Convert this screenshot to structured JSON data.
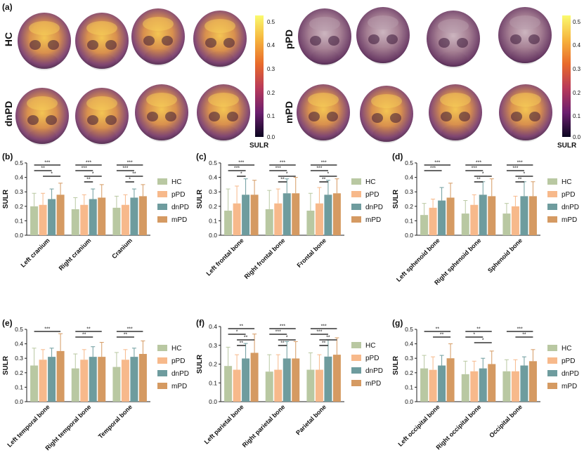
{
  "panel_a": {
    "label": "(a)",
    "groups": [
      {
        "name": "HC"
      },
      {
        "name": "pPD"
      },
      {
        "name": "dnPD"
      },
      {
        "name": "mPD"
      }
    ],
    "colorbar": {
      "label": "SULR",
      "ticks": [
        "0.5",
        "0.4",
        "0.3",
        "0.2",
        "0.1",
        "0.0"
      ],
      "colors": [
        "#fafa6e",
        "#f6b33d",
        "#e86a2b",
        "#b83a5a",
        "#6b1f6e",
        "#0b0620"
      ]
    }
  },
  "legend": [
    "HC",
    "pPD",
    "dnPD",
    "mPD"
  ],
  "colors": {
    "HC": "#b9c8a2",
    "pPD": "#f7b98b",
    "dnPD": "#6e9c9e",
    "mPD": "#d59a62",
    "sig": "#333333",
    "axis": "#222222"
  },
  "chart_data": [
    {
      "panel": "(b)",
      "type": "bar",
      "ylabel": "SULR",
      "ylim": [
        0,
        0.5
      ],
      "yticks": [
        "0.0",
        "0.1",
        "0.2",
        "0.3",
        "0.4",
        "0.5"
      ],
      "categories": [
        "Left cranium",
        "Right cranium",
        "Cranium"
      ],
      "series": [
        {
          "name": "HC",
          "values": [
            0.2,
            0.18,
            0.19
          ],
          "err": [
            0.09,
            0.08,
            0.08
          ]
        },
        {
          "name": "pPD",
          "values": [
            0.21,
            0.21,
            0.21
          ],
          "err": [
            0.08,
            0.07,
            0.07
          ]
        },
        {
          "name": "dnPD",
          "values": [
            0.25,
            0.25,
            0.26
          ],
          "err": [
            0.07,
            0.07,
            0.06
          ]
        },
        {
          "name": "mPD",
          "values": [
            0.28,
            0.26,
            0.27
          ],
          "err": [
            0.08,
            0.09,
            0.08
          ]
        }
      ],
      "significance": [
        {
          "category": 0,
          "pairs": [
            [
              0,
              3,
              "***"
            ],
            [
              0,
              2,
              "**"
            ],
            [
              1,
              3,
              "*"
            ]
          ]
        },
        {
          "category": 1,
          "pairs": [
            [
              0,
              3,
              "***"
            ],
            [
              0,
              2,
              "***"
            ],
            [
              1,
              3,
              "*"
            ],
            [
              1,
              2,
              "**"
            ]
          ]
        },
        {
          "category": 2,
          "pairs": [
            [
              0,
              3,
              "***"
            ],
            [
              0,
              2,
              "***"
            ],
            [
              1,
              3,
              "**"
            ],
            [
              1,
              2,
              "*"
            ]
          ]
        }
      ]
    },
    {
      "panel": "(c)",
      "type": "bar",
      "ylabel": "SULR",
      "ylim": [
        0,
        0.5
      ],
      "yticks": [
        "0.0",
        "0.1",
        "0.2",
        "0.3",
        "0.4",
        "0.5"
      ],
      "categories": [
        "Left frontal bone",
        "Right frontal bone",
        "Frontal bone"
      ],
      "series": [
        {
          "name": "HC",
          "values": [
            0.17,
            0.18,
            0.17
          ],
          "err": [
            0.15,
            0.13,
            0.12
          ]
        },
        {
          "name": "pPD",
          "values": [
            0.22,
            0.22,
            0.22
          ],
          "err": [
            0.12,
            0.1,
            0.11
          ]
        },
        {
          "name": "dnPD",
          "values": [
            0.28,
            0.29,
            0.28
          ],
          "err": [
            0.11,
            0.1,
            0.1
          ]
        },
        {
          "name": "mPD",
          "values": [
            0.28,
            0.29,
            0.29
          ],
          "err": [
            0.1,
            0.11,
            0.1
          ]
        }
      ],
      "significance": [
        {
          "category": 0,
          "pairs": [
            [
              0,
              3,
              "***"
            ],
            [
              0,
              2,
              "***"
            ],
            [
              1,
              2,
              "*"
            ]
          ]
        },
        {
          "category": 1,
          "pairs": [
            [
              0,
              3,
              "***"
            ],
            [
              0,
              2,
              "***"
            ],
            [
              1,
              3,
              "*"
            ],
            [
              1,
              2,
              "**"
            ]
          ]
        },
        {
          "category": 2,
          "pairs": [
            [
              0,
              3,
              "***"
            ],
            [
              0,
              2,
              "***"
            ],
            [
              1,
              3,
              "*"
            ],
            [
              1,
              2,
              "**"
            ]
          ]
        }
      ]
    },
    {
      "panel": "(d)",
      "type": "bar",
      "ylabel": "SULR",
      "ylim": [
        0,
        0.5
      ],
      "yticks": [
        "0.0",
        "0.1",
        "0.2",
        "0.3",
        "0.4",
        "0.5"
      ],
      "categories": [
        "Left sphenoid bone",
        "Right sphenoid bone",
        "Sphenoid bone"
      ],
      "series": [
        {
          "name": "HC",
          "values": [
            0.14,
            0.15,
            0.15
          ],
          "err": [
            0.08,
            0.09,
            0.07
          ]
        },
        {
          "name": "pPD",
          "values": [
            0.19,
            0.21,
            0.2
          ],
          "err": [
            0.06,
            0.07,
            0.07
          ]
        },
        {
          "name": "dnPD",
          "values": [
            0.24,
            0.28,
            0.27
          ],
          "err": [
            0.09,
            0.09,
            0.1
          ]
        },
        {
          "name": "mPD",
          "values": [
            0.26,
            0.27,
            0.27
          ],
          "err": [
            0.1,
            0.12,
            0.1
          ]
        }
      ],
      "significance": [
        {
          "category": 0,
          "pairs": [
            [
              0,
              3,
              "***"
            ],
            [
              0,
              2,
              "***"
            ]
          ]
        },
        {
          "category": 1,
          "pairs": [
            [
              0,
              3,
              "***"
            ],
            [
              0,
              2,
              "***"
            ],
            [
              1,
              3,
              "*"
            ],
            [
              1,
              2,
              "**"
            ]
          ]
        },
        {
          "category": 2,
          "pairs": [
            [
              0,
              3,
              "***"
            ],
            [
              0,
              2,
              "***"
            ],
            [
              1,
              3,
              "*"
            ],
            [
              1,
              2,
              "**"
            ]
          ]
        }
      ]
    },
    {
      "panel": "(e)",
      "type": "bar",
      "ylabel": "SULR",
      "ylim": [
        0,
        0.5
      ],
      "yticks": [
        "0.0",
        "0.1",
        "0.2",
        "0.3",
        "0.4",
        "0.5"
      ],
      "categories": [
        "Left temporal bone",
        "Right temporal bone",
        "Temporal bone"
      ],
      "series": [
        {
          "name": "HC",
          "values": [
            0.25,
            0.23,
            0.24
          ],
          "err": [
            0.12,
            0.1,
            0.1
          ]
        },
        {
          "name": "pPD",
          "values": [
            0.29,
            0.29,
            0.29
          ],
          "err": [
            0.07,
            0.07,
            0.07
          ]
        },
        {
          "name": "dnPD",
          "values": [
            0.31,
            0.31,
            0.31
          ],
          "err": [
            0.06,
            0.07,
            0.06
          ]
        },
        {
          "name": "mPD",
          "values": [
            0.35,
            0.31,
            0.33
          ],
          "err": [
            0.12,
            0.1,
            0.09
          ]
        }
      ],
      "significance": [
        {
          "category": 0,
          "pairs": [
            [
              0,
              3,
              "***"
            ]
          ]
        },
        {
          "category": 1,
          "pairs": [
            [
              0,
              3,
              "**"
            ],
            [
              0,
              2,
              "**"
            ]
          ]
        },
        {
          "category": 2,
          "pairs": [
            [
              0,
              3,
              "***"
            ],
            [
              0,
              2,
              "**"
            ]
          ]
        }
      ]
    },
    {
      "panel": "(f)",
      "type": "bar",
      "ylabel": "SULR",
      "ylim": [
        0,
        0.4
      ],
      "yticks": [
        "0.0",
        "0.1",
        "0.2",
        "0.3",
        "0.4"
      ],
      "categories": [
        "Left parietal bone",
        "Right parietal bone",
        "Parietal bone"
      ],
      "series": [
        {
          "name": "HC",
          "values": [
            0.19,
            0.16,
            0.17
          ],
          "err": [
            0.1,
            0.09,
            0.09
          ]
        },
        {
          "name": "pPD",
          "values": [
            0.17,
            0.17,
            0.17
          ],
          "err": [
            0.08,
            0.08,
            0.08
          ]
        },
        {
          "name": "dnPD",
          "values": [
            0.23,
            0.23,
            0.24
          ],
          "err": [
            0.08,
            0.09,
            0.09
          ]
        },
        {
          "name": "mPD",
          "values": [
            0.26,
            0.23,
            0.25
          ],
          "err": [
            0.1,
            0.09,
            0.09
          ]
        }
      ],
      "significance": [
        {
          "category": 0,
          "pairs": [
            [
              0,
              3,
              "**"
            ],
            [
              0,
              2,
              "*"
            ],
            [
              1,
              3,
              "**"
            ],
            [
              1,
              2,
              "**"
            ]
          ]
        },
        {
          "category": 1,
          "pairs": [
            [
              0,
              3,
              "***"
            ],
            [
              0,
              2,
              "***"
            ],
            [
              1,
              3,
              "*"
            ],
            [
              1,
              2,
              "**"
            ]
          ]
        },
        {
          "category": 2,
          "pairs": [
            [
              0,
              3,
              "***"
            ],
            [
              0,
              2,
              "***"
            ],
            [
              1,
              3,
              "**"
            ],
            [
              1,
              2,
              "**"
            ]
          ]
        }
      ]
    },
    {
      "panel": "(g)",
      "type": "bar",
      "ylabel": "SULR",
      "ylim": [
        0,
        0.5
      ],
      "yticks": [
        "0.0",
        "0.1",
        "0.2",
        "0.3",
        "0.4",
        "0.5"
      ],
      "categories": [
        "Left occipital bone",
        "Right occipital bone",
        "Occipital bone"
      ],
      "series": [
        {
          "name": "HC",
          "values": [
            0.23,
            0.19,
            0.21
          ],
          "err": [
            0.09,
            0.09,
            0.08
          ]
        },
        {
          "name": "pPD",
          "values": [
            0.22,
            0.21,
            0.21
          ],
          "err": [
            0.09,
            0.07,
            0.08
          ]
        },
        {
          "name": "dnPD",
          "values": [
            0.25,
            0.23,
            0.25
          ],
          "err": [
            0.07,
            0.07,
            0.06
          ]
        },
        {
          "name": "mPD",
          "values": [
            0.3,
            0.26,
            0.28
          ],
          "err": [
            0.1,
            0.09,
            0.08
          ]
        }
      ],
      "significance": [
        {
          "category": 0,
          "pairs": [
            [
              0,
              3,
              "**"
            ],
            [
              1,
              3,
              "**"
            ]
          ]
        },
        {
          "category": 1,
          "pairs": [
            [
              0,
              3,
              "**"
            ],
            [
              0,
              2,
              "*"
            ],
            [
              1,
              3,
              "*"
            ]
          ]
        },
        {
          "category": 2,
          "pairs": [
            [
              0,
              3,
              "***"
            ],
            [
              1,
              3,
              "**"
            ]
          ]
        }
      ]
    }
  ]
}
